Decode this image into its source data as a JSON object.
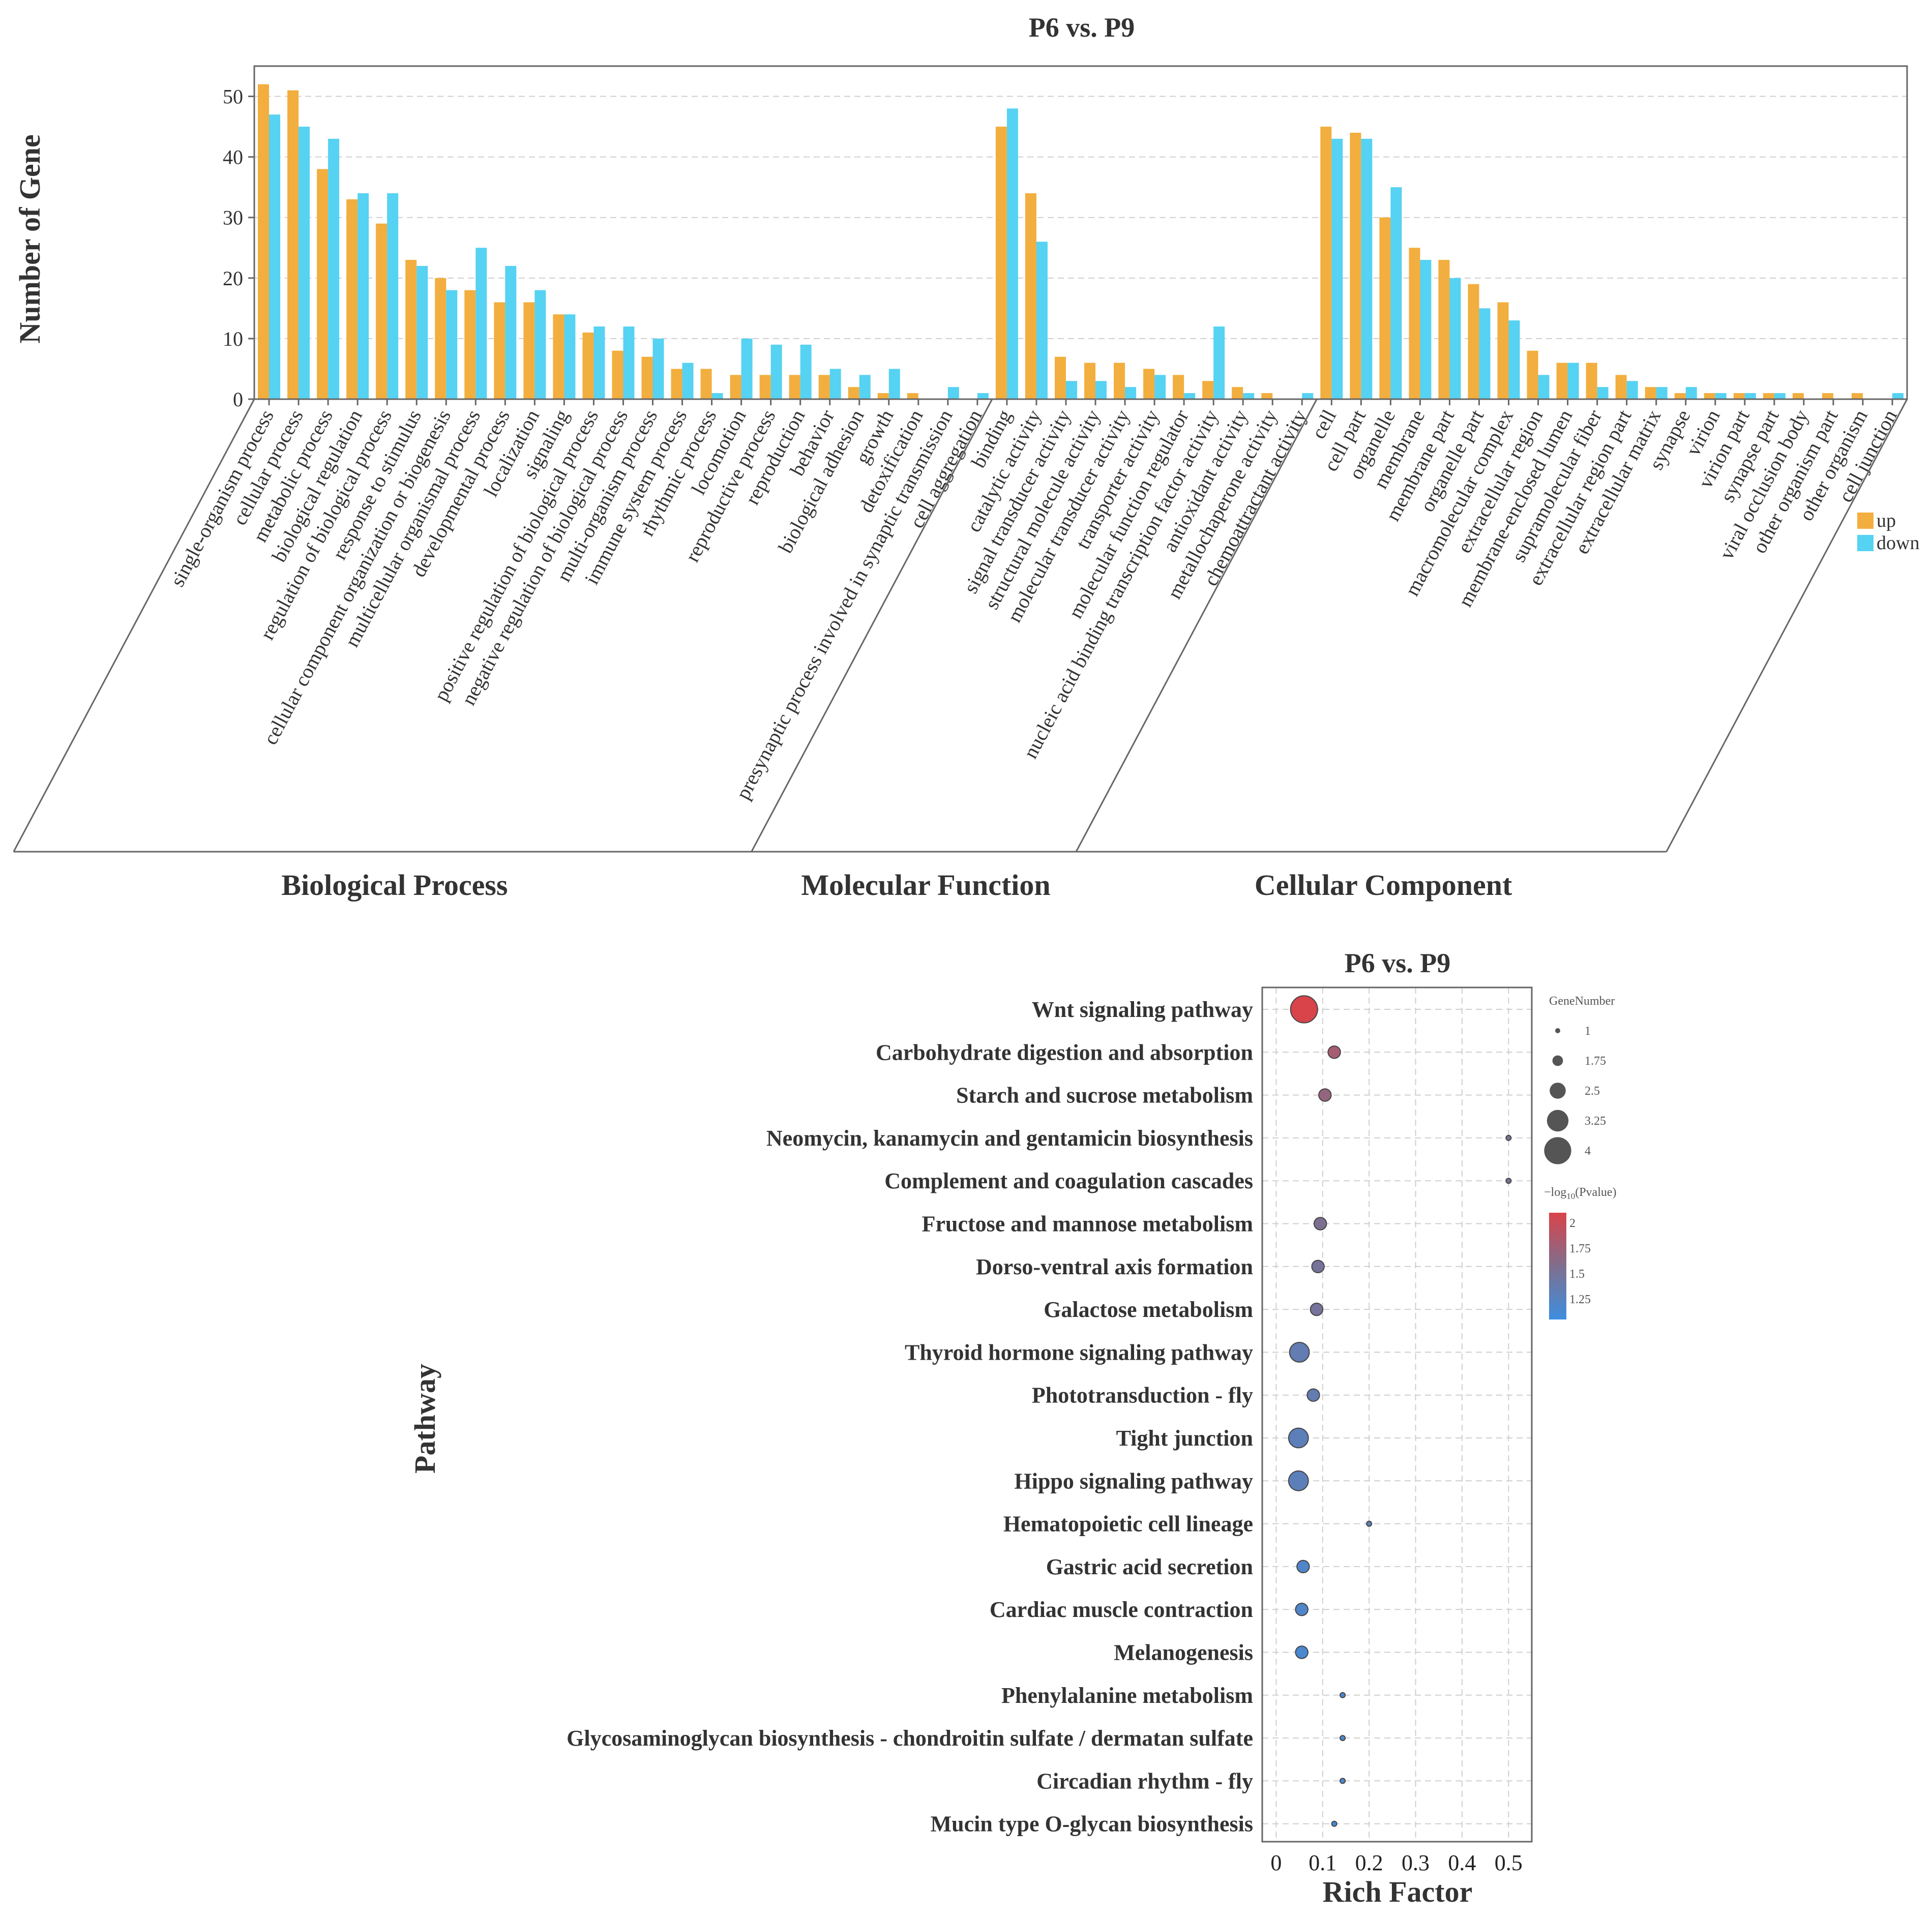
{
  "colors": {
    "up": "#f2ae3e",
    "down": "#56d2f2",
    "p_high": "#d9434a",
    "p_mid": "#7f6f8e",
    "p_low": "#3d8ee0",
    "bubble_stroke": "#444444"
  },
  "chart_data": [
    {
      "type": "bar",
      "title": "P6 vs. P9",
      "ylabel": "Number of Gene",
      "ylim": [
        0,
        55
      ],
      "yticks": [
        0,
        10,
        20,
        30,
        40,
        50
      ],
      "grid": true,
      "legend": {
        "position": "right",
        "entries": [
          "up",
          "down"
        ]
      },
      "groups": [
        {
          "name": "Biological Process",
          "categories": [
            "single-organism process",
            "cellular process",
            "metabolic process",
            "biological regulation",
            "regulation of biological process",
            "response to stimulus",
            "cellular component organization or biogenesis",
            "multicellular organismal process",
            "developmental process",
            "localization",
            "signaling",
            "positive regulation of biological process",
            "negative regulation of biological process",
            "multi-organism process",
            "immune system process",
            "rhythmic process",
            "locomotion",
            "reproductive process",
            "reproduction",
            "behavior",
            "biological adhesion",
            "growth",
            "detoxification",
            "presynaptic process involved in synaptic transmission",
            "cell aggregation"
          ],
          "up": [
            52,
            51,
            38,
            33,
            29,
            23,
            20,
            18,
            16,
            16,
            14,
            11,
            8,
            7,
            5,
            5,
            4,
            4,
            4,
            4,
            2,
            1,
            1,
            0,
            0
          ],
          "down": [
            47,
            45,
            43,
            34,
            34,
            22,
            18,
            25,
            22,
            18,
            14,
            12,
            12,
            10,
            6,
            1,
            10,
            9,
            9,
            5,
            4,
            5,
            0,
            2,
            1
          ]
        },
        {
          "name": "Molecular Function",
          "categories": [
            "binding",
            "catalytic activity",
            "signal transducer activity",
            "structural molecule activity",
            "molecular transducer activity",
            "transporter activity",
            "molecular function regulator",
            "nucleic acid binding transcription factor activity",
            "antioxidant activity",
            "metallochaperone activity",
            "chemoattractant activity"
          ],
          "up": [
            45,
            34,
            7,
            6,
            6,
            5,
            4,
            3,
            2,
            1,
            0
          ],
          "down": [
            48,
            26,
            3,
            3,
            2,
            4,
            1,
            12,
            1,
            0,
            1
          ]
        },
        {
          "name": "Cellular Component",
          "categories": [
            "cell",
            "cell part",
            "organelle",
            "membrane",
            "membrane part",
            "organelle part",
            "macromolecular complex",
            "extracellular region",
            "membrane-enclosed lumen",
            "supramolecular fiber",
            "extracellular region part",
            "extracellular matrix",
            "synapse",
            "virion",
            "virion part",
            "synapse part",
            "viral occlusion body",
            "other organism part",
            "other organism",
            "cell junction"
          ],
          "up": [
            45,
            44,
            30,
            25,
            23,
            19,
            16,
            8,
            6,
            6,
            4,
            2,
            1,
            1,
            1,
            1,
            1,
            1,
            1,
            0
          ],
          "down": [
            43,
            43,
            35,
            23,
            20,
            15,
            13,
            4,
            6,
            2,
            3,
            2,
            2,
            1,
            1,
            1,
            0,
            0,
            0,
            1
          ]
        }
      ]
    },
    {
      "type": "scatter",
      "title": "P6 vs. P9",
      "xlabel": "Rich Factor",
      "ylabel": "Pathway",
      "xlim": [
        -0.03,
        0.55
      ],
      "xticks": [
        0,
        0.1,
        0.2,
        0.3,
        0.4,
        0.5
      ],
      "xtick_labels": [
        "0",
        "0.1",
        "0.2",
        "0.3",
        "0.4",
        "0.5"
      ],
      "grid": true,
      "size_legend": {
        "title": "GeneNumber",
        "values": [
          1,
          1.75,
          2.5,
          3.25,
          4
        ],
        "labels": [
          "1",
          "1.75",
          "2.5",
          "3.25",
          "4"
        ]
      },
      "color_legend": {
        "title_prefix": "−log",
        "title_sub": "10",
        "title_suffix": "(Pvalue)",
        "range": [
          1.05,
          2.1
        ],
        "ticks": [
          2,
          1.75,
          1.5,
          1.25
        ],
        "tick_labels": [
          "2",
          "1.75",
          "1.5",
          "1.25"
        ]
      },
      "points": [
        {
          "pathway": "Wnt signaling pathway",
          "rich_factor": 0.06,
          "gene_number": 4,
          "neg_log10_p": 2.1
        },
        {
          "pathway": "Carbohydrate digestion and absorption",
          "rich_factor": 0.125,
          "gene_number": 2,
          "neg_log10_p": 1.8
        },
        {
          "pathway": "Starch and sucrose metabolism",
          "rich_factor": 0.105,
          "gene_number": 2,
          "neg_log10_p": 1.7
        },
        {
          "pathway": "Neomycin, kanamycin and gentamicin biosynthesis",
          "rich_factor": 0.5,
          "gene_number": 1,
          "neg_log10_p": 1.55
        },
        {
          "pathway": "Complement and coagulation cascades",
          "rich_factor": 0.5,
          "gene_number": 1,
          "neg_log10_p": 1.55
        },
        {
          "pathway": "Fructose and mannose metabolism",
          "rich_factor": 0.095,
          "gene_number": 2,
          "neg_log10_p": 1.55
        },
        {
          "pathway": "Dorso-ventral axis formation",
          "rich_factor": 0.09,
          "gene_number": 2,
          "neg_log10_p": 1.5
        },
        {
          "pathway": "Galactose metabolism",
          "rich_factor": 0.087,
          "gene_number": 2,
          "neg_log10_p": 1.5
        },
        {
          "pathway": "Thyroid hormone signaling pathway",
          "rich_factor": 0.05,
          "gene_number": 3,
          "neg_log10_p": 1.35
        },
        {
          "pathway": "Phototransduction - fly",
          "rich_factor": 0.08,
          "gene_number": 2,
          "neg_log10_p": 1.35
        },
        {
          "pathway": "Tight junction",
          "rich_factor": 0.048,
          "gene_number": 3,
          "neg_log10_p": 1.3
        },
        {
          "pathway": "Hippo signaling pathway",
          "rich_factor": 0.048,
          "gene_number": 3,
          "neg_log10_p": 1.3
        },
        {
          "pathway": "Hematopoietic cell lineage",
          "rich_factor": 0.2,
          "gene_number": 1,
          "neg_log10_p": 1.3
        },
        {
          "pathway": "Gastric acid secretion",
          "rich_factor": 0.058,
          "gene_number": 2,
          "neg_log10_p": 1.2
        },
        {
          "pathway": "Cardiac muscle contraction",
          "rich_factor": 0.055,
          "gene_number": 2,
          "neg_log10_p": 1.2
        },
        {
          "pathway": "Melanogenesis",
          "rich_factor": 0.055,
          "gene_number": 2,
          "neg_log10_p": 1.15
        },
        {
          "pathway": "Phenylalanine metabolism",
          "rich_factor": 0.143,
          "gene_number": 1,
          "neg_log10_p": 1.15
        },
        {
          "pathway": "Glycosaminoglycan biosynthesis - chondroitin sulfate / dermatan sulfate",
          "rich_factor": 0.143,
          "gene_number": 1,
          "neg_log10_p": 1.15
        },
        {
          "pathway": "Circadian rhythm - fly",
          "rich_factor": 0.143,
          "gene_number": 1,
          "neg_log10_p": 1.15
        },
        {
          "pathway": "Mucin type O-glycan biosynthesis",
          "rich_factor": 0.125,
          "gene_number": 1,
          "neg_log10_p": 1.1
        }
      ]
    }
  ]
}
